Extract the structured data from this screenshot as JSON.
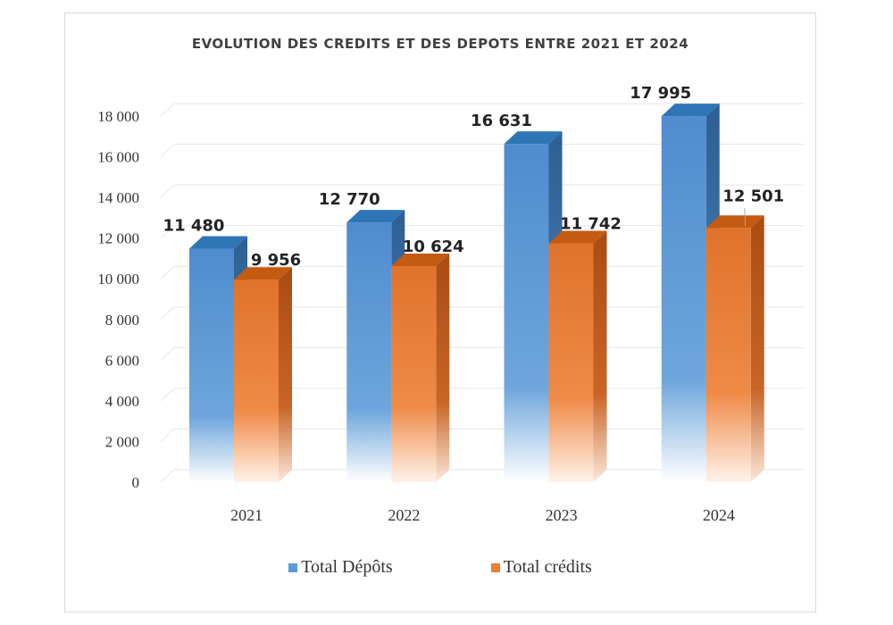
{
  "chart_data": {
    "type": "bar",
    "title": "EVOLUTION DES CREDITS ET DES DEPOTS ENTRE 2021 ET 2024",
    "categories": [
      "2021",
      "2022",
      "2023",
      "2024"
    ],
    "series": [
      {
        "name": "Total Dépôts",
        "values": [
          11480,
          12770,
          16631,
          17995
        ],
        "labels": [
          "11 480",
          "12 770",
          "16 631",
          "17 995"
        ],
        "color": "#5b9bd5",
        "top_color": "#2e75b6"
      },
      {
        "name": "Total crédits",
        "values": [
          9956,
          10624,
          11742,
          12501
        ],
        "labels": [
          "9 956",
          "10 624",
          "11 742",
          "12 501"
        ],
        "color": "#ed7d31",
        "top_color": "#c55a11"
      }
    ],
    "ylim": [
      0,
      18000
    ],
    "yticks": [
      0,
      2000,
      4000,
      6000,
      8000,
      10000,
      12000,
      14000,
      16000,
      18000
    ],
    "ytick_labels": [
      "0",
      "2 000",
      "4 000",
      "6 000",
      "8 000",
      "10 000",
      "12 000",
      "14 000",
      "16 000",
      "18 000"
    ],
    "grid": true,
    "legend_position": "bottom",
    "style": "3d-gradient"
  }
}
